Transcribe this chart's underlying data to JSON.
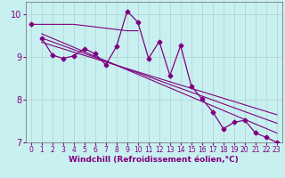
{
  "xlabel": "Windchill (Refroidissement éolien,°C)",
  "xlim": [
    -0.5,
    23.5
  ],
  "ylim": [
    7,
    10.3
  ],
  "background_color": "#c8f0f0",
  "line_color": "#800080",
  "grid_color": "#b0d0d0",
  "x_ticks": [
    0,
    1,
    2,
    3,
    4,
    5,
    6,
    7,
    8,
    9,
    10,
    11,
    12,
    13,
    14,
    15,
    16,
    17,
    18,
    19,
    20,
    21,
    22,
    23
  ],
  "y_ticks": [
    7,
    8,
    9,
    10
  ],
  "flat_line": {
    "x": [
      0,
      1,
      2,
      3,
      4,
      9,
      10
    ],
    "y": [
      9.77,
      9.77,
      9.77,
      9.77,
      9.77,
      9.62,
      9.62
    ]
  },
  "main_line": {
    "x": [
      1,
      2,
      3,
      4,
      5,
      6,
      7,
      8,
      9,
      10,
      11,
      12,
      13,
      14,
      15,
      16,
      17,
      18,
      19,
      20,
      21,
      22,
      23
    ],
    "y": [
      9.45,
      9.05,
      8.97,
      9.03,
      9.2,
      9.08,
      8.82,
      9.25,
      10.08,
      9.82,
      8.97,
      9.37,
      8.57,
      9.27,
      8.32,
      8.02,
      7.72,
      7.32,
      7.47,
      7.52,
      7.22,
      7.12,
      7.0
    ]
  },
  "trend_lines": [
    {
      "x": [
        1,
        23
      ],
      "y": [
        9.55,
        7.22
      ]
    },
    {
      "x": [
        1,
        23
      ],
      "y": [
        9.45,
        7.45
      ]
    },
    {
      "x": [
        1,
        23
      ],
      "y": [
        9.35,
        7.65
      ]
    }
  ],
  "fontsize_xlabel": 6.5,
  "fontsize_yticks": 7,
  "fontsize_xticks": 5.5
}
